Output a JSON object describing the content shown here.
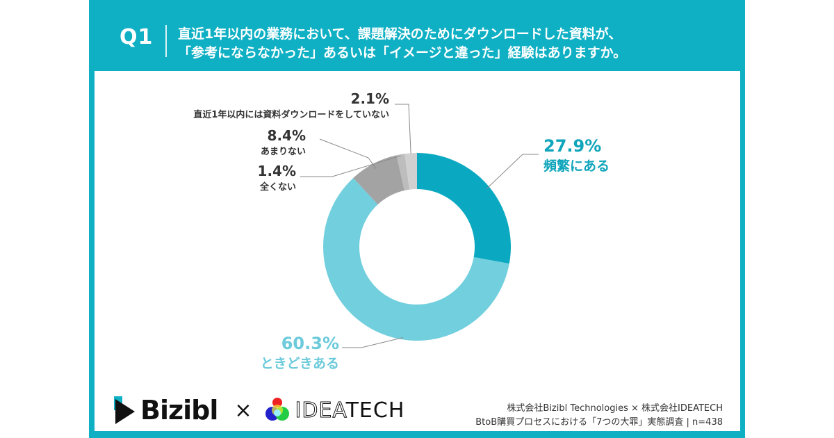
{
  "header": {
    "question_number": "Q1",
    "question_line1": "直近1年以内の業務において、課題解決のためにダウンロードした資料が、",
    "question_line2": "「参考にならなかった」あるいは「イメージと違った」経験はありますか。"
  },
  "colors": {
    "frame": "#0fb0c4",
    "frequent": "#0aa9c1",
    "sometimes": "#72cfde",
    "not_much": "#a3a3a3",
    "never": "#bdbdbd",
    "no_download": "#d0d0d0"
  },
  "chart_data": {
    "type": "pie",
    "variant": "donut",
    "title": "直近1年以内の業務において、課題解決のためにダウンロードした資料が、「参考にならなかった」あるいは「イメージと違った」経験はありますか。",
    "unit": "%",
    "slices": [
      {
        "label": "頻繁にある",
        "value": 27.9,
        "display": "27.9%",
        "color": "#0aa9c1"
      },
      {
        "label": "ときどきある",
        "value": 60.3,
        "display": "60.3%",
        "color": "#72cfde"
      },
      {
        "label": "あまりない",
        "value": 8.4,
        "display": "8.4%",
        "color": "#a3a3a3"
      },
      {
        "label": "全くない",
        "value": 1.4,
        "display": "1.4%",
        "color": "#bdbdbd"
      },
      {
        "label": "直近1年以内には資料ダウンロードをしていない",
        "value": 2.1,
        "display": "2.1%",
        "color": "#d0d0d0"
      }
    ],
    "start": "top",
    "direction": "clockwise"
  },
  "footer": {
    "brand1": "Bizibl",
    "times": "×",
    "brand2_outline": "IDEA",
    "brand2_solid": "TECH",
    "credit_line1": "株式会社Bizibl Technologies × 株式会社IDEATECH",
    "credit_line2": "BtoB購買プロセスにおける「7つの大罪」実態調査 | n=438"
  }
}
